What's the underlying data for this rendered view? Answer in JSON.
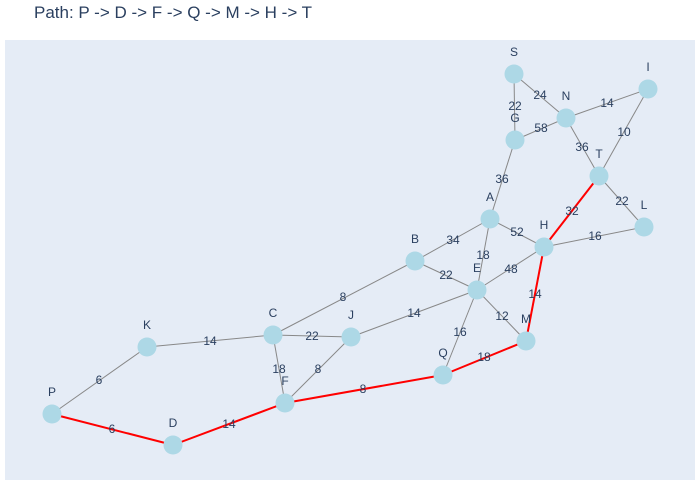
{
  "title": "Path: P -> D -> F -> Q -> M -> H -> T",
  "colors": {
    "plot_bg": "#e5ecf6",
    "edge": "#888888",
    "path_edge": "#ff0000",
    "node": "#add8e6",
    "text": "#2a3f5f"
  },
  "path": [
    "P",
    "D",
    "F",
    "Q",
    "M",
    "H",
    "T"
  ],
  "nodes": [
    {
      "id": "S"
    },
    {
      "id": "N"
    },
    {
      "id": "I"
    },
    {
      "id": "G"
    },
    {
      "id": "T"
    },
    {
      "id": "L"
    },
    {
      "id": "A"
    },
    {
      "id": "H"
    },
    {
      "id": "B"
    },
    {
      "id": "E"
    },
    {
      "id": "M"
    },
    {
      "id": "J"
    },
    {
      "id": "C"
    },
    {
      "id": "K"
    },
    {
      "id": "Q"
    },
    {
      "id": "F"
    },
    {
      "id": "P"
    },
    {
      "id": "D"
    }
  ],
  "edges": [
    {
      "from": "S",
      "to": "N",
      "weight": "24"
    },
    {
      "from": "S",
      "to": "G",
      "weight": "22"
    },
    {
      "from": "N",
      "to": "I",
      "weight": "14"
    },
    {
      "from": "N",
      "to": "G",
      "weight": "58"
    },
    {
      "from": "N",
      "to": "T",
      "weight": "36"
    },
    {
      "from": "I",
      "to": "T",
      "weight": "10"
    },
    {
      "from": "G",
      "to": "A",
      "weight": "36"
    },
    {
      "from": "T",
      "to": "L",
      "weight": "22"
    },
    {
      "from": "T",
      "to": "H",
      "weight": "32"
    },
    {
      "from": "A",
      "to": "H",
      "weight": "52"
    },
    {
      "from": "A",
      "to": "B",
      "weight": "34"
    },
    {
      "from": "A",
      "to": "E",
      "weight": "18"
    },
    {
      "from": "H",
      "to": "L",
      "weight": "16"
    },
    {
      "from": "H",
      "to": "E",
      "weight": "48"
    },
    {
      "from": "H",
      "to": "M",
      "weight": "14"
    },
    {
      "from": "B",
      "to": "E",
      "weight": "22"
    },
    {
      "from": "B",
      "to": "C",
      "weight": "8"
    },
    {
      "from": "E",
      "to": "M",
      "weight": "12"
    },
    {
      "from": "E",
      "to": "Q",
      "weight": "16"
    },
    {
      "from": "E",
      "to": "J",
      "weight": "14"
    },
    {
      "from": "M",
      "to": "Q",
      "weight": "18"
    },
    {
      "from": "C",
      "to": "J",
      "weight": "22"
    },
    {
      "from": "C",
      "to": "K",
      "weight": "14"
    },
    {
      "from": "C",
      "to": "F",
      "weight": "18"
    },
    {
      "from": "J",
      "to": "F",
      "weight": "8"
    },
    {
      "from": "F",
      "to": "Q",
      "weight": "8"
    },
    {
      "from": "F",
      "to": "D",
      "weight": "14"
    },
    {
      "from": "K",
      "to": "P",
      "weight": "6"
    },
    {
      "from": "P",
      "to": "D",
      "weight": "6"
    }
  ]
}
